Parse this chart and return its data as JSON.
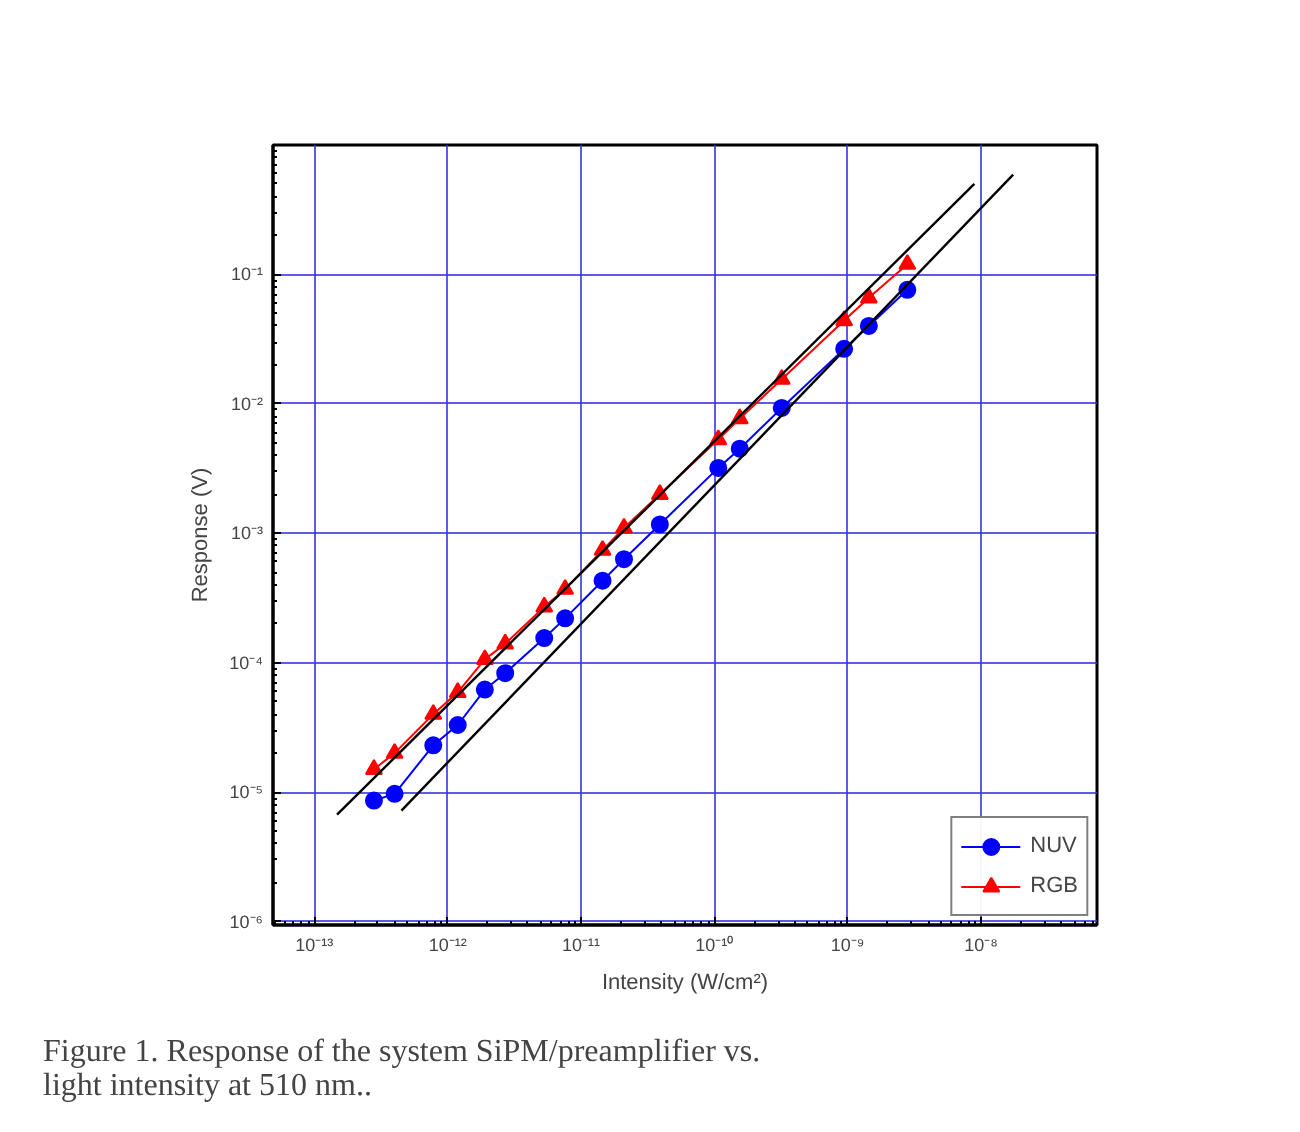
{
  "chart_data": {
    "type": "line",
    "xlabel": "Intensity (W/cm²)",
    "ylabel": "Response (V)",
    "log": "xy",
    "grid": true,
    "legend": "bottom right",
    "line_style": "solid",
    "xlim": [
      4.9e-14,
      7.4e-08
    ],
    "ylim": [
      9.4e-07,
      1
    ],
    "xticks": [
      {
        "value": 1e-13,
        "label": "10⁻¹³"
      },
      {
        "value": 1e-12,
        "label": "10⁻¹²"
      },
      {
        "value": 1e-11,
        "label": "10⁻¹¹"
      },
      {
        "value": 1e-10,
        "label": "10⁻¹⁰"
      },
      {
        "value": 1e-09,
        "label": "10⁻⁹"
      },
      {
        "value": 1e-08,
        "label": "10⁻⁸"
      }
    ],
    "yticks": [
      {
        "value": 1e-06,
        "label": "10⁻⁶"
      },
      {
        "value": 1e-05,
        "label": "10⁻⁵"
      },
      {
        "value": 0.0001,
        "label": "10⁻⁴"
      },
      {
        "value": 0.001,
        "label": "10⁻³"
      },
      {
        "value": 0.01,
        "label": "10⁻²"
      },
      {
        "value": 0.1,
        "label": "10⁻¹"
      }
    ],
    "x": [
      2.8e-13,
      4e-13,
      7.8e-13,
      1.19e-12,
      1.9e-12,
      2.7e-12,
      5.3e-12,
      7.6e-12,
      1.45e-11,
      2.1e-11,
      3.9e-11,
      1.07e-10,
      1.55e-10,
      3.2e-10,
      9.4e-10,
      1.44e-09,
      2.8e-09
    ],
    "series": [
      {
        "name": "NUV",
        "color": "#0000ff",
        "marker": "circle",
        "values": [
          8.6e-06,
          9.7e-06,
          2.3e-05,
          3.3e-05,
          6.2e-05,
          8.3e-05,
          0.000155,
          0.00022,
          0.00043,
          0.00063,
          0.00117,
          0.0032,
          0.0045,
          0.0093,
          0.0266,
          0.04,
          0.076
        ]
      },
      {
        "name": "RGB",
        "color": "#ff0000",
        "marker": "triangle",
        "values": [
          1.5e-05,
          2e-05,
          4e-05,
          5.9e-05,
          0.000106,
          0.00014,
          0.00027,
          0.00037,
          0.00074,
          0.0011,
          0.002,
          0.0053,
          0.0077,
          0.0155,
          0.044,
          0.066,
          0.12
        ]
      },
      {
        "type": "line",
        "color": "#000000",
        "marker": "none",
        "x": [
          1.48e-13,
          8.9e-09
        ],
        "values": [
          6.7e-06,
          0.5
        ]
      },
      {
        "type": "line",
        "color": "#000000",
        "marker": "none",
        "x": [
          4.5e-13,
          1.74e-08
        ],
        "values": [
          7.2e-06,
          0.59
        ]
      }
    ],
    "annotations": [
      "Figure 1. Response of the system SiPM/preamplifier vs. light intensity at 510 nm.."
    ]
  }
}
